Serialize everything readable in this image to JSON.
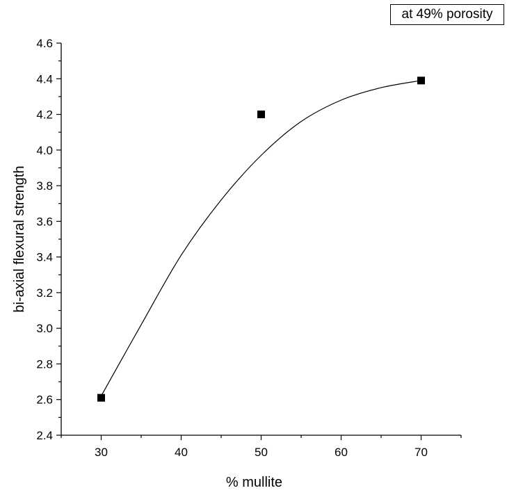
{
  "chart_data": {
    "type": "scatter",
    "title": "",
    "xlabel": "% mullite",
    "ylabel": "bi-axial flexural strength",
    "xlim": [
      25,
      75
    ],
    "ylim": [
      2.4,
      4.6
    ],
    "xticks": [
      30,
      40,
      50,
      60,
      70
    ],
    "yticks": [
      2.4,
      2.6,
      2.8,
      3.0,
      3.2,
      3.4,
      3.6,
      3.8,
      4.0,
      4.2,
      4.4,
      4.6
    ],
    "xtick_labels": [
      "30",
      "40",
      "50",
      "60",
      "70"
    ],
    "ytick_labels": [
      "2.4",
      "2.6",
      "2.8",
      "3.0",
      "3.2",
      "3.4",
      "3.6",
      "3.8",
      "4.0",
      "4.2",
      "4.4",
      "4.6"
    ],
    "annotation": "at 49% porosity",
    "series": [
      {
        "marker": "square",
        "color": "#000000",
        "x": [
          30,
          50,
          70
        ],
        "y": [
          2.61,
          4.2,
          4.39
        ]
      }
    ],
    "fit_curve": {
      "color": "#000000",
      "x": [
        30,
        35,
        40,
        45,
        50,
        55,
        60,
        65,
        70
      ],
      "y": [
        2.62,
        3.02,
        3.41,
        3.72,
        3.97,
        4.16,
        4.28,
        4.35,
        4.39
      ]
    },
    "grid": false,
    "legend": "top-right"
  }
}
